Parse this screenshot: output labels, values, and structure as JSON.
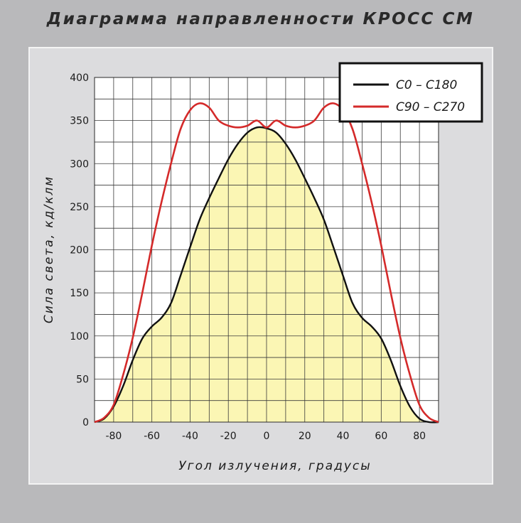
{
  "title": "Диаграмма  направленности  КРОСС СМ",
  "chart_data": {
    "type": "line",
    "title": "Диаграмма  направленности  КРОСС СМ",
    "xlabel": "Угол излучения, градусы",
    "ylabel": "Сила света, кд/клм",
    "xlim": [
      -90,
      90
    ],
    "ylim": [
      0,
      400
    ],
    "x_ticks": [
      "-80",
      "-60",
      "-40",
      "-20",
      "0",
      "20",
      "40",
      "60",
      "80"
    ],
    "y_ticks": [
      "0",
      "50",
      "100",
      "150",
      "200",
      "250",
      "300",
      "350",
      "400"
    ],
    "grid": true,
    "legend_position": "top-right",
    "x": [
      -90,
      -85,
      -80,
      -75,
      -70,
      -65,
      -60,
      -55,
      -50,
      -45,
      -40,
      -35,
      -30,
      -25,
      -20,
      -15,
      -10,
      -5,
      0,
      5,
      10,
      15,
      20,
      25,
      30,
      35,
      40,
      45,
      50,
      55,
      60,
      65,
      70,
      75,
      80,
      85,
      90
    ],
    "series": [
      {
        "name": "С0 – С180",
        "color": "#111111",
        "filled": true,
        "fill_color": "#fbf6b4",
        "values": [
          0,
          4,
          18,
          42,
          72,
          97,
          111,
          121,
          138,
          170,
          203,
          235,
          260,
          283,
          305,
          323,
          336,
          342,
          341,
          336,
          323,
          305,
          283,
          260,
          235,
          203,
          170,
          138,
          121,
          111,
          97,
          72,
          42,
          18,
          4,
          0,
          0
        ]
      },
      {
        "name": "С90 – С270",
        "color": "#d42a2a",
        "filled": false,
        "values": [
          0,
          5,
          20,
          55,
          98,
          150,
          205,
          255,
          300,
          340,
          362,
          370,
          365,
          350,
          344,
          342,
          344,
          350,
          342,
          350,
          344,
          342,
          344,
          350,
          365,
          370,
          362,
          340,
          300,
          255,
          205,
          150,
          98,
          55,
          20,
          5,
          0
        ]
      }
    ]
  }
}
